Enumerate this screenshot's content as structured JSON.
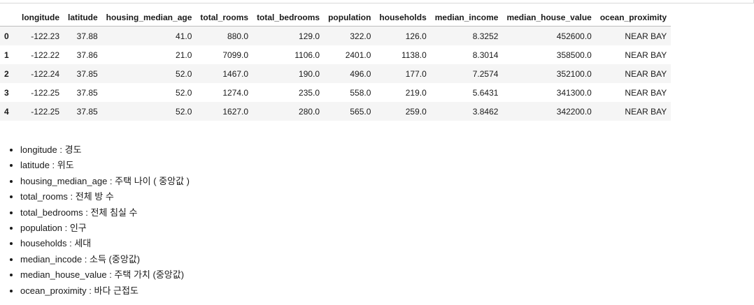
{
  "table": {
    "columns": [
      "",
      "longitude",
      "latitude",
      "housing_median_age",
      "total_rooms",
      "total_bedrooms",
      "population",
      "households",
      "median_income",
      "median_house_value",
      "ocean_proximity"
    ],
    "rows": [
      {
        "index": "0",
        "cells": [
          "-122.23",
          "37.88",
          "41.0",
          "880.0",
          "129.0",
          "322.0",
          "126.0",
          "8.3252",
          "452600.0",
          "NEAR BAY"
        ]
      },
      {
        "index": "1",
        "cells": [
          "-122.22",
          "37.86",
          "21.0",
          "7099.0",
          "1106.0",
          "2401.0",
          "1138.0",
          "8.3014",
          "358500.0",
          "NEAR BAY"
        ]
      },
      {
        "index": "2",
        "cells": [
          "-122.24",
          "37.85",
          "52.0",
          "1467.0",
          "190.0",
          "496.0",
          "177.0",
          "7.2574",
          "352100.0",
          "NEAR BAY"
        ]
      },
      {
        "index": "3",
        "cells": [
          "-122.25",
          "37.85",
          "52.0",
          "1274.0",
          "235.0",
          "558.0",
          "219.0",
          "5.6431",
          "341300.0",
          "NEAR BAY"
        ]
      },
      {
        "index": "4",
        "cells": [
          "-122.25",
          "37.85",
          "52.0",
          "1627.0",
          "280.0",
          "565.0",
          "259.0",
          "3.8462",
          "342200.0",
          "NEAR BAY"
        ]
      }
    ]
  },
  "descriptions": [
    "longitude : 경도",
    "latitude : 위도",
    "housing_median_age : 주택 나이 ( 중앙값 )",
    "total_rooms : 전체 방 수",
    "total_bedrooms : 전체 침실 수",
    "population : 인구",
    "households : 세대",
    "median_incode : 소득 (중앙값)",
    "median_house_value : 주택 가치 (중앙값)",
    "ocean_proximity : 바다 근접도"
  ],
  "colors": {
    "stripe": "#f5f5f5",
    "header_border": "#bdbdbd",
    "text": "#1a1a1a"
  }
}
